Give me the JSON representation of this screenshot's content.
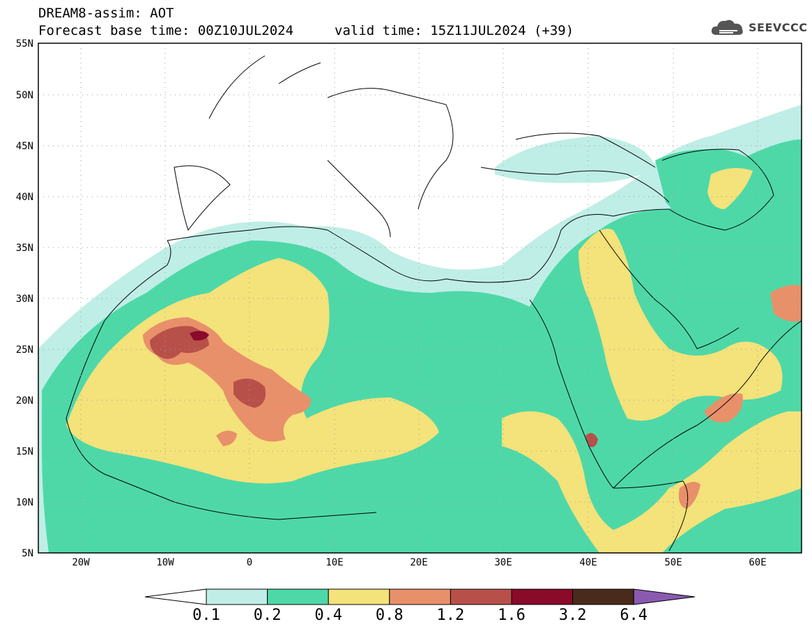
{
  "header": {
    "title": "DREAM8-assim: AOT",
    "base_time": "Forecast base time: 00Z10JUL2024",
    "valid_time": "valid time: 15Z11JUL2024 (+39)"
  },
  "logo": {
    "text": "SEEVCCC",
    "icon": "cloud-icon"
  },
  "axes": {
    "lat_labels": [
      "55N",
      "50N",
      "45N",
      "40N",
      "35N",
      "30N",
      "25N",
      "20N",
      "15N",
      "10N",
      "5N"
    ],
    "lon_labels": [
      "20W",
      "10W",
      "0",
      "10E",
      "20E",
      "30E",
      "40E",
      "50E",
      "60E"
    ]
  },
  "colorbar": {
    "labels": [
      "0.1",
      "0.2",
      "0.4",
      "0.8",
      "1.2",
      "1.6",
      "3.2",
      "6.4"
    ],
    "colors": [
      "#ffffff",
      "#bfeee6",
      "#4ed8a8",
      "#f4e27a",
      "#e8906a",
      "#b8504a",
      "#8a0a2a",
      "#4a2a1a",
      "#8a5ab0"
    ]
  },
  "colors": {
    "c01": "#bfeee6",
    "c02": "#4ed8a8",
    "c04": "#f4e27a",
    "c08": "#e8906a",
    "c12": "#b8504a",
    "c16": "#8a0a2a"
  }
}
